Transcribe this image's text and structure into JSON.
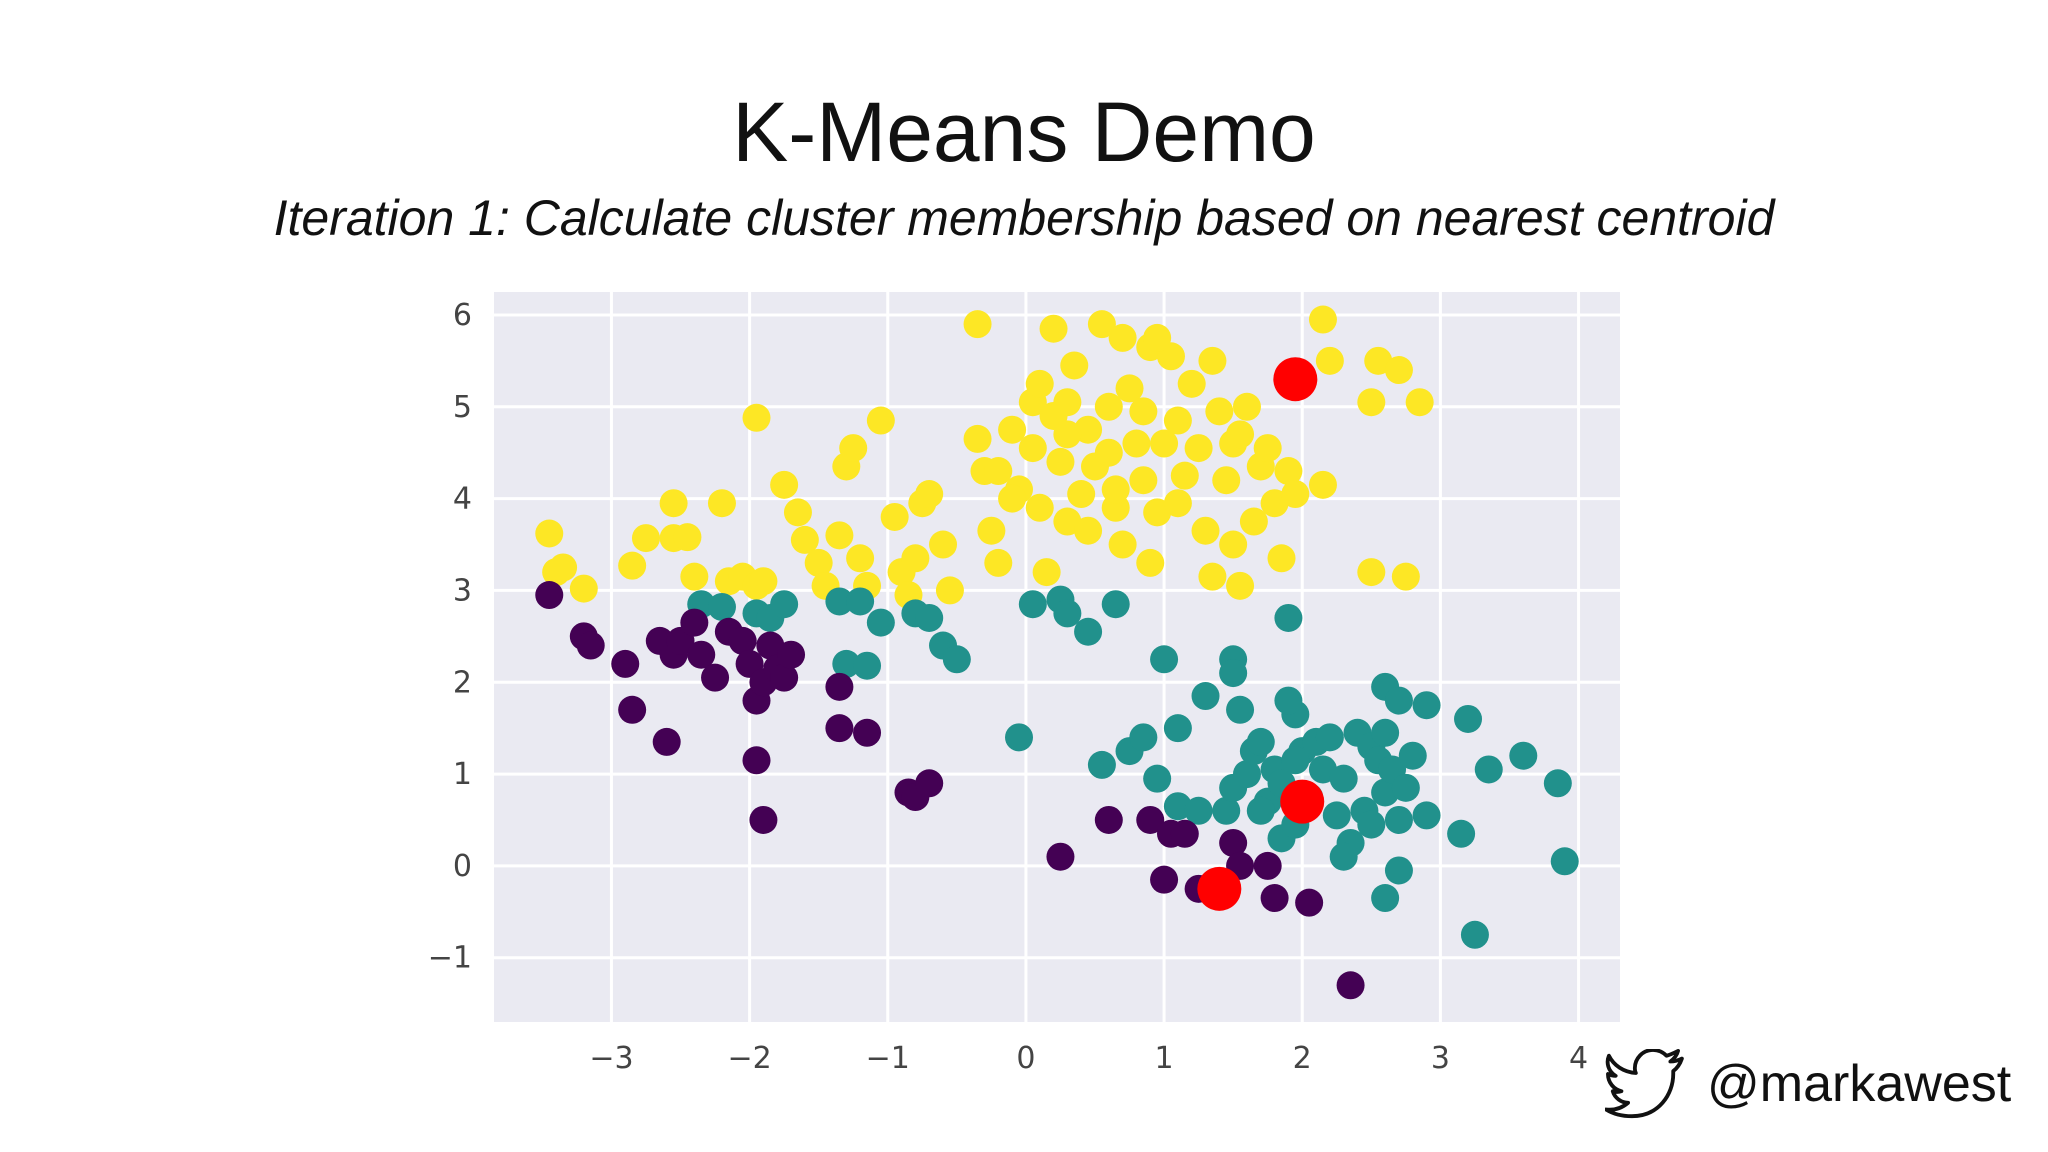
{
  "slide": {
    "title": "K-Means Demo",
    "subtitle": "Iteration 1: Calculate cluster membership based on nearest centroid",
    "handle": "@markawest",
    "handle_icon": "twitter-bird-icon"
  },
  "colors": {
    "background": "#ffffff",
    "plot_background": "#eaeaf2",
    "gridline": "#ffffff",
    "tick_text": "#444444",
    "cluster_yellow": "#fde725",
    "cluster_teal": "#21918c",
    "cluster_purple": "#440154",
    "centroid": "#ff0000"
  },
  "chart_data": {
    "type": "scatter",
    "title": "",
    "xlabel": "",
    "ylabel": "",
    "xlim": [
      -3.85,
      4.3
    ],
    "ylim": [
      -1.7,
      6.25
    ],
    "xticks": [
      -3,
      -2,
      -1,
      0,
      1,
      2,
      3,
      4
    ],
    "xtick_labels": [
      "−3",
      "−2",
      "−1",
      "0",
      "1",
      "2",
      "3",
      "4"
    ],
    "yticks": [
      -1,
      0,
      1,
      2,
      3,
      4,
      5,
      6
    ],
    "ytick_labels": [
      "−1",
      "0",
      "1",
      "2",
      "3",
      "4",
      "5",
      "6"
    ],
    "grid": true,
    "legend": "none",
    "series": [
      {
        "color": "#fde725",
        "marker": "point",
        "points": [
          [
            -3.45,
            3.62
          ],
          [
            -3.4,
            3.2
          ],
          [
            -3.35,
            3.25
          ],
          [
            -3.2,
            3.02
          ],
          [
            -2.85,
            3.27
          ],
          [
            -2.75,
            3.57
          ],
          [
            -2.55,
            3.95
          ],
          [
            -2.55,
            3.57
          ],
          [
            -2.45,
            3.58
          ],
          [
            -2.4,
            3.15
          ],
          [
            -2.2,
            3.95
          ],
          [
            -2.15,
            3.1
          ],
          [
            -2.05,
            3.15
          ],
          [
            -1.95,
            3.05
          ],
          [
            -1.9,
            3.1
          ],
          [
            -1.95,
            4.88
          ],
          [
            -1.75,
            4.15
          ],
          [
            -1.65,
            3.85
          ],
          [
            -1.6,
            3.55
          ],
          [
            -1.5,
            3.3
          ],
          [
            -1.45,
            3.05
          ],
          [
            -1.35,
            3.6
          ],
          [
            -1.3,
            4.35
          ],
          [
            -1.25,
            4.55
          ],
          [
            -1.2,
            3.35
          ],
          [
            -1.15,
            3.05
          ],
          [
            -1.05,
            4.85
          ],
          [
            -0.95,
            3.8
          ],
          [
            -0.9,
            3.2
          ],
          [
            -0.85,
            2.95
          ],
          [
            -0.8,
            3.35
          ],
          [
            -0.75,
            3.95
          ],
          [
            -0.7,
            4.05
          ],
          [
            -0.6,
            3.5
          ],
          [
            -0.55,
            3.0
          ],
          [
            -0.35,
            5.9
          ],
          [
            -0.35,
            4.65
          ],
          [
            -0.3,
            4.3
          ],
          [
            -0.25,
            3.65
          ],
          [
            -0.2,
            3.3
          ],
          [
            -0.1,
            4.75
          ],
          [
            -0.05,
            4.1
          ],
          [
            0.05,
            5.05
          ],
          [
            0.05,
            4.55
          ],
          [
            0.1,
            3.9
          ],
          [
            0.15,
            3.2
          ],
          [
            0.2,
            4.9
          ],
          [
            0.25,
            4.4
          ],
          [
            0.3,
            5.05
          ],
          [
            0.3,
            3.75
          ],
          [
            0.35,
            5.45
          ],
          [
            0.4,
            4.05
          ],
          [
            0.45,
            4.75
          ],
          [
            0.5,
            4.35
          ],
          [
            0.55,
            5.9
          ],
          [
            0.6,
            5.0
          ],
          [
            0.6,
            4.5
          ],
          [
            0.65,
            3.9
          ],
          [
            0.7,
            3.5
          ],
          [
            0.75,
            5.2
          ],
          [
            0.8,
            4.6
          ],
          [
            0.85,
            4.2
          ],
          [
            0.9,
            5.65
          ],
          [
            0.95,
            3.85
          ],
          [
            1.0,
            4.6
          ],
          [
            1.05,
            5.55
          ],
          [
            1.1,
            4.85
          ],
          [
            1.15,
            4.25
          ],
          [
            1.2,
            5.25
          ],
          [
            1.25,
            4.55
          ],
          [
            1.3,
            3.65
          ],
          [
            1.35,
            3.15
          ],
          [
            1.4,
            4.95
          ],
          [
            1.45,
            4.2
          ],
          [
            1.5,
            4.6
          ],
          [
            1.55,
            3.05
          ],
          [
            1.6,
            5.0
          ],
          [
            1.65,
            3.75
          ],
          [
            1.7,
            4.35
          ],
          [
            1.75,
            4.55
          ],
          [
            1.8,
            3.95
          ],
          [
            1.85,
            3.35
          ],
          [
            1.9,
            4.3
          ],
          [
            1.95,
            4.05
          ],
          [
            2.15,
            5.95
          ],
          [
            2.15,
            4.15
          ],
          [
            2.2,
            5.5
          ],
          [
            2.55,
            5.5
          ],
          [
            2.5,
            5.05
          ],
          [
            2.7,
            5.4
          ],
          [
            2.85,
            5.05
          ],
          [
            2.5,
            3.2
          ],
          [
            2.75,
            3.15
          ],
          [
            0.2,
            5.85
          ],
          [
            0.7,
            5.75
          ],
          [
            0.95,
            5.75
          ],
          [
            -0.1,
            4.0
          ],
          [
            0.45,
            3.65
          ],
          [
            0.9,
            3.3
          ],
          [
            1.5,
            3.5
          ],
          [
            1.1,
            3.95
          ],
          [
            0.65,
            4.1
          ],
          [
            0.3,
            4.7
          ],
          [
            -0.2,
            4.3
          ],
          [
            1.35,
            5.5
          ],
          [
            1.55,
            4.7
          ],
          [
            0.1,
            5.25
          ],
          [
            0.85,
            4.95
          ]
        ]
      },
      {
        "color": "#21918c",
        "marker": "point",
        "points": [
          [
            -2.35,
            2.85
          ],
          [
            -2.2,
            2.82
          ],
          [
            -1.95,
            2.75
          ],
          [
            -1.85,
            2.7
          ],
          [
            -1.75,
            2.85
          ],
          [
            -1.35,
            2.88
          ],
          [
            -1.3,
            2.2
          ],
          [
            -1.2,
            2.88
          ],
          [
            -1.15,
            2.18
          ],
          [
            -1.05,
            2.65
          ],
          [
            -0.8,
            2.75
          ],
          [
            -0.7,
            2.7
          ],
          [
            -0.6,
            2.4
          ],
          [
            -0.5,
            2.25
          ],
          [
            0.05,
            2.85
          ],
          [
            0.25,
            2.9
          ],
          [
            0.3,
            2.75
          ],
          [
            0.45,
            2.55
          ],
          [
            0.65,
            2.85
          ],
          [
            -0.05,
            1.4
          ],
          [
            1.0,
            2.25
          ],
          [
            1.1,
            1.5
          ],
          [
            1.3,
            1.85
          ],
          [
            1.5,
            2.25
          ],
          [
            1.5,
            2.1
          ],
          [
            1.55,
            1.7
          ],
          [
            1.9,
            2.7
          ],
          [
            1.95,
            1.65
          ],
          [
            1.9,
            1.8
          ],
          [
            2.6,
            1.95
          ],
          [
            2.7,
            1.8
          ],
          [
            2.9,
            1.75
          ],
          [
            3.2,
            1.6
          ],
          [
            3.35,
            1.05
          ],
          [
            3.6,
            1.2
          ],
          [
            3.85,
            0.9
          ],
          [
            3.9,
            0.05
          ],
          [
            3.25,
            -0.75
          ],
          [
            3.15,
            0.35
          ],
          [
            2.9,
            0.55
          ],
          [
            2.7,
            -0.05
          ],
          [
            2.6,
            -0.35
          ],
          [
            0.55,
            1.1
          ],
          [
            0.75,
            1.25
          ],
          [
            0.85,
            1.4
          ],
          [
            0.95,
            0.95
          ],
          [
            1.1,
            0.65
          ],
          [
            1.25,
            0.6
          ],
          [
            1.45,
            0.6
          ],
          [
            1.5,
            0.85
          ],
          [
            1.6,
            1.0
          ],
          [
            1.65,
            1.25
          ],
          [
            1.7,
            1.35
          ],
          [
            1.75,
            0.7
          ],
          [
            1.8,
            1.05
          ],
          [
            1.85,
            0.9
          ],
          [
            1.85,
            0.3
          ],
          [
            1.95,
            0.45
          ],
          [
            2.0,
            1.25
          ],
          [
            2.05,
            0.75
          ],
          [
            2.1,
            1.35
          ],
          [
            2.15,
            1.05
          ],
          [
            2.2,
            1.4
          ],
          [
            2.25,
            0.55
          ],
          [
            2.3,
            0.95
          ],
          [
            2.35,
            0.25
          ],
          [
            2.4,
            1.45
          ],
          [
            2.45,
            0.6
          ],
          [
            2.5,
            1.3
          ],
          [
            2.55,
            1.15
          ],
          [
            2.6,
            0.8
          ],
          [
            2.65,
            1.05
          ],
          [
            2.7,
            0.5
          ],
          [
            2.75,
            0.85
          ],
          [
            2.8,
            1.2
          ],
          [
            2.5,
            0.45
          ],
          [
            2.3,
            0.1
          ],
          [
            1.95,
            1.15
          ],
          [
            1.7,
            0.6
          ],
          [
            2.6,
            1.45
          ]
        ]
      },
      {
        "color": "#440154",
        "marker": "point",
        "points": [
          [
            -3.45,
            2.95
          ],
          [
            -3.2,
            2.5
          ],
          [
            -3.15,
            2.4
          ],
          [
            -2.9,
            2.2
          ],
          [
            -2.85,
            1.7
          ],
          [
            -2.65,
            2.45
          ],
          [
            -2.6,
            1.35
          ],
          [
            -2.55,
            2.3
          ],
          [
            -2.5,
            2.45
          ],
          [
            -2.4,
            2.65
          ],
          [
            -2.35,
            2.3
          ],
          [
            -2.25,
            2.05
          ],
          [
            -2.15,
            2.55
          ],
          [
            -2.05,
            2.45
          ],
          [
            -2.0,
            2.2
          ],
          [
            -1.95,
            1.8
          ],
          [
            -1.9,
            2.0
          ],
          [
            -1.85,
            2.4
          ],
          [
            -1.8,
            2.15
          ],
          [
            -1.75,
            2.05
          ],
          [
            -1.7,
            2.3
          ],
          [
            -1.35,
            1.95
          ],
          [
            -1.35,
            1.5
          ],
          [
            -1.15,
            1.45
          ],
          [
            -1.95,
            1.15
          ],
          [
            -1.9,
            0.5
          ],
          [
            -0.85,
            0.8
          ],
          [
            -0.8,
            0.75
          ],
          [
            -0.7,
            0.9
          ],
          [
            0.25,
            0.1
          ],
          [
            0.6,
            0.5
          ],
          [
            0.9,
            0.5
          ],
          [
            1.0,
            -0.15
          ],
          [
            1.05,
            0.35
          ],
          [
            1.15,
            0.35
          ],
          [
            1.25,
            -0.25
          ],
          [
            1.5,
            0.25
          ],
          [
            1.55,
            0.0
          ],
          [
            1.8,
            -0.35
          ],
          [
            1.75,
            0.0
          ],
          [
            2.05,
            -0.4
          ],
          [
            2.35,
            -1.3
          ]
        ]
      },
      {
        "color": "#ff0000",
        "marker": "centroid",
        "points": [
          [
            1.95,
            5.3
          ],
          [
            2.0,
            0.7
          ],
          [
            1.4,
            -0.25
          ]
        ]
      }
    ]
  }
}
